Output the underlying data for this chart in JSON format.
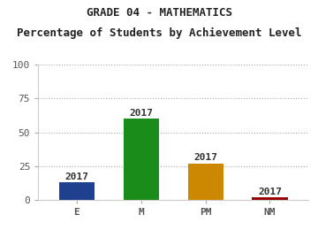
{
  "title1": "GRADE 04 - MATHEMATICS",
  "title2": "Percentage of Students by Achievement Level",
  "categories": [
    "E",
    "M",
    "PM",
    "NM"
  ],
  "values": [
    13,
    60,
    27,
    2
  ],
  "bar_colors": [
    "#1f3f8f",
    "#1a8c1a",
    "#cc8800",
    "#990000"
  ],
  "bar_labels": [
    "2017",
    "2017",
    "2017",
    "2017"
  ],
  "ylim": [
    0,
    100
  ],
  "yticks": [
    0,
    25,
    50,
    75,
    100
  ],
  "bg_color": "#ffffff",
  "plot_bg_color": "#ffffff",
  "grid_color": "#aaaaaa",
  "title1_fontsize": 9,
  "title2_fontsize": 9,
  "tick_fontsize": 8,
  "bar_label_fontsize": 8,
  "bar_width": 0.55
}
